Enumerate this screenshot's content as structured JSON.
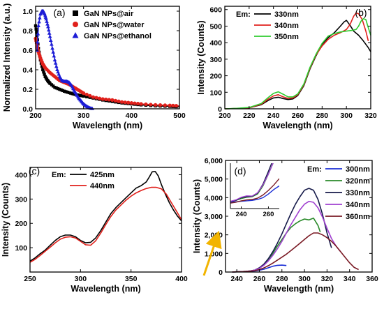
{
  "chart_data": [
    {
      "type": "line",
      "panel_label": "(a)",
      "xlabel": "Wavelength (nm)",
      "ylabel": "Normalized Intensity (a.u.)",
      "xlim": [
        200,
        500
      ],
      "ylim": [
        0,
        1.05
      ],
      "xticks": [
        200,
        300,
        400,
        500
      ],
      "yticks": [
        0.0,
        0.2,
        0.4,
        0.6,
        0.8,
        1.0
      ],
      "xtick_labels": [
        "200",
        "300",
        "400",
        "500"
      ],
      "ytick_labels": [
        "0.0",
        "0.2",
        "0.4",
        "0.6",
        "0.8",
        "1.0"
      ],
      "legend_position": "top-right",
      "grid": false,
      "series": [
        {
          "name": "GaN NPs@air",
          "color": "#000000",
          "marker": "square",
          "x": [
            200,
            203,
            206,
            210,
            215,
            220,
            225,
            230,
            240,
            250,
            260,
            270,
            280,
            290,
            300,
            320,
            340,
            360,
            380,
            400,
            420,
            450,
            480,
            500
          ],
          "y": [
            0.85,
            0.75,
            0.62,
            0.5,
            0.4,
            0.33,
            0.29,
            0.26,
            0.22,
            0.2,
            0.18,
            0.165,
            0.15,
            0.14,
            0.13,
            0.11,
            0.09,
            0.075,
            0.06,
            0.05,
            0.04,
            0.03,
            0.025,
            0.02
          ]
        },
        {
          "name": "GaN NPs@water",
          "color": "#e0201b",
          "marker": "circle",
          "x": [
            200,
            203,
            206,
            210,
            215,
            220,
            230,
            240,
            250,
            260,
            270,
            280,
            290,
            300,
            320,
            340,
            360,
            380,
            400,
            420,
            450,
            480,
            500
          ],
          "y": [
            0.72,
            0.65,
            0.58,
            0.52,
            0.46,
            0.42,
            0.37,
            0.33,
            0.29,
            0.27,
            0.25,
            0.22,
            0.19,
            0.16,
            0.12,
            0.1,
            0.09,
            0.07,
            0.06,
            0.05,
            0.04,
            0.035,
            0.03
          ]
        },
        {
          "name": "GaN NPs@ethanol",
          "color": "#1d1dd6",
          "marker": "triangle",
          "x": [
            203,
            206,
            210,
            213,
            216,
            219,
            222,
            226,
            230,
            235,
            240,
            245,
            250,
            255,
            260,
            265,
            270,
            275,
            280,
            285,
            290,
            295,
            300,
            305,
            310,
            315,
            320
          ],
          "y": [
            0.6,
            0.85,
            0.97,
            1.0,
            1.0,
            0.97,
            0.92,
            0.84,
            0.74,
            0.62,
            0.5,
            0.4,
            0.33,
            0.29,
            0.28,
            0.28,
            0.27,
            0.24,
            0.19,
            0.15,
            0.11,
            0.08,
            0.05,
            0.03,
            0.015,
            0.005,
            0.0
          ]
        }
      ]
    },
    {
      "type": "line",
      "panel_label": "(b)",
      "xlabel": "Wavelength (nm)",
      "ylabel": "Intensity (Counts)",
      "xlim": [
        200,
        320
      ],
      "ylim": [
        0,
        620
      ],
      "xticks": [
        200,
        220,
        240,
        260,
        280,
        300,
        320
      ],
      "yticks": [
        0,
        100,
        200,
        300,
        400,
        500,
        600
      ],
      "xtick_labels": [
        "200",
        "220",
        "240",
        "260",
        "280",
        "300",
        "320"
      ],
      "ytick_labels": [
        "0",
        "100",
        "200",
        "300",
        "400",
        "500",
        "600"
      ],
      "legend_title": "Em:",
      "legend_position": "top-left",
      "grid": false,
      "series": [
        {
          "name": "330nm",
          "color": "#000000",
          "x": [
            200,
            210,
            220,
            230,
            236,
            240,
            244,
            248,
            252,
            256,
            260,
            265,
            270,
            275,
            280,
            285,
            290,
            295,
            298,
            300,
            303,
            306,
            310,
            314,
            318,
            320
          ],
          "y": [
            0,
            2,
            6,
            25,
            52,
            66,
            70,
            62,
            56,
            60,
            80,
            140,
            240,
            320,
            390,
            430,
            460,
            500,
            525,
            535,
            505,
            470,
            445,
            410,
            370,
            345
          ]
        },
        {
          "name": "340nm",
          "color": "#e0201b",
          "x": [
            200,
            210,
            220,
            230,
            236,
            240,
            244,
            248,
            252,
            256,
            260,
            265,
            270,
            275,
            280,
            285,
            290,
            295,
            300,
            303,
            306,
            308,
            310,
            313,
            316,
            318
          ],
          "y": [
            0,
            2,
            6,
            28,
            60,
            78,
            85,
            72,
            63,
            66,
            85,
            145,
            245,
            325,
            380,
            420,
            445,
            460,
            480,
            510,
            560,
            580,
            575,
            540,
            470,
            410
          ]
        },
        {
          "name": "350nm",
          "color": "#2fcc2f",
          "x": [
            200,
            210,
            220,
            230,
            236,
            240,
            244,
            248,
            252,
            256,
            260,
            265,
            270,
            275,
            280,
            285,
            290,
            295,
            300,
            305,
            308,
            310,
            312,
            314,
            316,
            318,
            320
          ],
          "y": [
            0,
            3,
            8,
            32,
            70,
            93,
            103,
            88,
            72,
            72,
            90,
            150,
            250,
            330,
            395,
            440,
            455,
            465,
            470,
            475,
            480,
            500,
            530,
            545,
            540,
            490,
            445
          ]
        }
      ]
    },
    {
      "type": "line",
      "panel_label": "(c)",
      "xlabel": "Wavelength (nm)",
      "ylabel": "Intensity (Counts)",
      "xlim": [
        250,
        400
      ],
      "ylim": [
        0,
        430
      ],
      "xticks": [
        250,
        300,
        350,
        400
      ],
      "yticks": [
        100,
        200,
        300,
        400
      ],
      "xtick_labels": [
        "250",
        "300",
        "350",
        "400"
      ],
      "ytick_labels": [
        "100",
        "200",
        "300",
        "400"
      ],
      "legend_title": "Em:",
      "legend_position": "top-left",
      "grid": false,
      "series": [
        {
          "name": "425nm",
          "color": "#000000",
          "x": [
            250,
            255,
            260,
            265,
            270,
            275,
            280,
            285,
            290,
            295,
            300,
            305,
            310,
            315,
            320,
            325,
            330,
            335,
            340,
            345,
            350,
            355,
            360,
            365,
            368,
            371,
            374,
            377,
            380,
            384,
            388,
            392,
            396,
            400
          ],
          "y": [
            45,
            58,
            75,
            90,
            110,
            130,
            145,
            152,
            152,
            145,
            130,
            120,
            122,
            140,
            170,
            205,
            240,
            265,
            285,
            305,
            325,
            345,
            355,
            370,
            390,
            412,
            413,
            395,
            360,
            320,
            285,
            255,
            230,
            210
          ]
        },
        {
          "name": "440nm",
          "color": "#e0201b",
          "x": [
            250,
            255,
            260,
            265,
            270,
            275,
            280,
            285,
            290,
            295,
            300,
            305,
            310,
            315,
            320,
            325,
            330,
            335,
            340,
            345,
            350,
            355,
            360,
            365,
            370,
            375,
            380,
            385,
            390,
            395,
            400
          ],
          "y": [
            40,
            52,
            68,
            85,
            102,
            120,
            135,
            143,
            145,
            140,
            126,
            112,
            110,
            128,
            160,
            195,
            228,
            255,
            275,
            295,
            312,
            325,
            335,
            343,
            348,
            348,
            342,
            320,
            285,
            250,
            215
          ]
        }
      ]
    },
    {
      "type": "line",
      "panel_label": "(d)",
      "xlabel": "Wavelength (nm)",
      "ylabel": "Intensity (Counts)",
      "xlim": [
        230,
        360
      ],
      "ylim": [
        0,
        6000
      ],
      "xticks": [
        240,
        260,
        280,
        300,
        320,
        340,
        360
      ],
      "yticks": [
        0,
        1000,
        2000,
        3000,
        4000,
        5000,
        6000
      ],
      "xtick_labels": [
        "240",
        "260",
        "280",
        "300",
        "320",
        "340",
        "360"
      ],
      "ytick_labels": [
        "0",
        "1,000",
        "2,000",
        "3,000",
        "4,000",
        "5,000",
        "6,000"
      ],
      "legend_title": "Em:",
      "legend_position": "right",
      "grid": false,
      "series": [
        {
          "name": "300nm",
          "color": "#1b2fd6",
          "x": [
            236,
            240,
            244,
            248,
            252,
            256,
            260,
            264,
            268,
            272,
            276,
            280,
            284
          ],
          "y": [
            5,
            10,
            18,
            25,
            35,
            60,
            100,
            150,
            230,
            310,
            360,
            370,
            350
          ]
        },
        {
          "name": "320nm",
          "color": "#2a8a2a",
          "x": [
            236,
            240,
            244,
            248,
            252,
            256,
            260,
            264,
            268,
            272,
            276,
            280,
            284,
            288,
            292,
            296,
            300,
            304,
            308,
            312,
            314
          ],
          "y": [
            5,
            12,
            22,
            35,
            55,
            100,
            200,
            380,
            650,
            1000,
            1400,
            1750,
            2100,
            2400,
            2600,
            2750,
            2850,
            2800,
            2900,
            2500,
            2150
          ]
        },
        {
          "name": "330nm",
          "color": "#161a4a",
          "x": [
            236,
            240,
            244,
            248,
            252,
            256,
            260,
            264,
            268,
            272,
            276,
            280,
            284,
            288,
            292,
            296,
            300,
            304,
            308,
            312,
            316,
            320,
            324
          ],
          "y": [
            5,
            12,
            22,
            35,
            60,
            110,
            230,
            420,
            720,
            1100,
            1550,
            2050,
            2600,
            3150,
            3650,
            4050,
            4400,
            4500,
            4400,
            3900,
            3100,
            2100,
            1300
          ]
        },
        {
          "name": "340nm",
          "color": "#a040d0",
          "x": [
            236,
            240,
            244,
            248,
            252,
            256,
            260,
            264,
            268,
            272,
            276,
            280,
            284,
            288,
            292,
            296,
            300,
            304,
            308,
            312,
            316,
            320,
            324,
            328,
            332
          ],
          "y": [
            5,
            12,
            22,
            35,
            58,
            105,
            200,
            360,
            600,
            900,
            1250,
            1650,
            2100,
            2550,
            2950,
            3350,
            3650,
            3800,
            3750,
            3450,
            2950,
            2350,
            1800,
            1400,
            1100
          ]
        },
        {
          "name": "360nm",
          "color": "#7a1a24",
          "x": [
            236,
            240,
            244,
            248,
            252,
            256,
            260,
            264,
            268,
            272,
            276,
            280,
            284,
            288,
            292,
            296,
            300,
            304,
            308,
            312,
            316,
            320,
            324,
            328,
            332,
            336,
            340,
            344,
            348
          ],
          "y": [
            5,
            12,
            20,
            30,
            45,
            75,
            130,
            220,
            340,
            480,
            640,
            800,
            960,
            1150,
            1350,
            1550,
            1750,
            1950,
            2100,
            2100,
            2000,
            1850,
            1650,
            1400,
            1100,
            800,
            500,
            250,
            130
          ]
        }
      ],
      "inset": {
        "xlim": [
          232,
          268
        ],
        "ylim": [
          0,
          500
        ],
        "xticks": [
          240,
          260
        ],
        "xtick_labels": [
          "240",
          "260"
        ],
        "series": [
          {
            "name": "300nm",
            "color": "#1b2fd6",
            "x": [
              232,
              236,
              240,
              244,
              248,
              252,
              256,
              260,
              264,
              268
            ],
            "y": [
              70,
              75,
              80,
              85,
              90,
              100,
              120,
              160,
              210,
              250
            ]
          },
          {
            "name": "320nm",
            "color": "#2a8a2a",
            "x": [
              232,
              236,
              240,
              244,
              248,
              252,
              256,
              260,
              264
            ],
            "y": [
              80,
              90,
              110,
              125,
              130,
              160,
              250,
              380,
              520
            ]
          },
          {
            "name": "330nm",
            "color": "#161a4a",
            "x": [
              232,
              236,
              240,
              244,
              248,
              252,
              256,
              260,
              264
            ],
            "y": [
              75,
              90,
              120,
              130,
              135,
              170,
              270,
              410,
              560
            ]
          },
          {
            "name": "340nm",
            "color": "#a040d0",
            "x": [
              232,
              236,
              240,
              244,
              248,
              252,
              256,
              260,
              264
            ],
            "y": [
              80,
              95,
              125,
              140,
              138,
              175,
              260,
              380,
              520
            ]
          },
          {
            "name": "360nm",
            "color": "#7a1a24",
            "x": [
              232,
              236,
              240,
              244,
              248,
              252,
              256,
              260,
              264,
              268
            ],
            "y": [
              60,
              70,
              85,
              95,
              100,
              115,
              150,
              200,
              260,
              330
            ]
          }
        ]
      }
    }
  ]
}
